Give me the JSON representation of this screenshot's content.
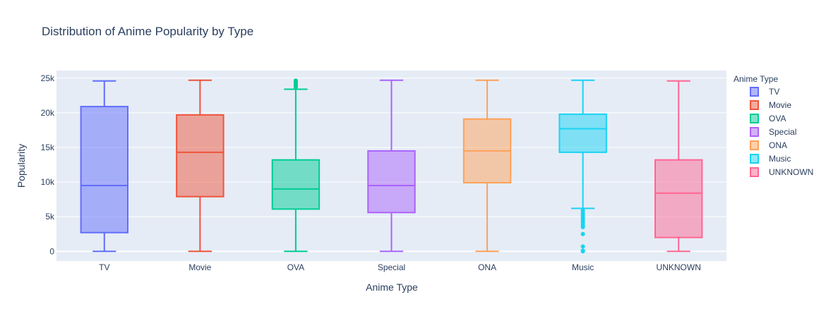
{
  "chart_data": {
    "type": "box",
    "title": "Distribution of Anime Popularity by Type",
    "xlabel": "Anime Type",
    "ylabel": "Popularity",
    "ylim": [
      -1400,
      26100
    ],
    "yticks": [
      0,
      5000,
      10000,
      15000,
      20000,
      25000
    ],
    "ytick_labels": [
      "0",
      "5k",
      "10k",
      "15k",
      "20k",
      "25k"
    ],
    "grid": true,
    "legend_title": "Anime Type",
    "legend_position": "right",
    "plot_background": "#e5ecf6",
    "series": [
      {
        "name": "TV",
        "color": "#636efa",
        "min": 0,
        "q1": 2700,
        "median": 9500,
        "q3": 20900,
        "max": 24600,
        "outliers": []
      },
      {
        "name": "Movie",
        "color": "#ef553b",
        "min": 0,
        "q1": 7900,
        "median": 14300,
        "q3": 19700,
        "max": 24700,
        "outliers": []
      },
      {
        "name": "OVA",
        "color": "#00cc96",
        "min": 0,
        "q1": 6100,
        "median": 9000,
        "q3": 13200,
        "max": 23400,
        "outliers": [
          23700,
          23900,
          24100,
          24300,
          24500,
          24650
        ]
      },
      {
        "name": "Special",
        "color": "#ab63fa",
        "min": 0,
        "q1": 5600,
        "median": 9500,
        "q3": 14500,
        "max": 24700,
        "outliers": []
      },
      {
        "name": "ONA",
        "color": "#ffa15a",
        "min": 0,
        "q1": 9900,
        "median": 14500,
        "q3": 19100,
        "max": 24700,
        "outliers": []
      },
      {
        "name": "Music",
        "color": "#19d3f3",
        "min": 6200,
        "q1": 14300,
        "median": 17700,
        "q3": 19800,
        "max": 24700,
        "outliers": [
          5900,
          5500,
          5200,
          4900,
          4600,
          4300,
          4000,
          3700,
          3500,
          2500,
          700,
          100,
          0
        ]
      },
      {
        "name": "UNKNOWN",
        "color": "#ff6692",
        "min": 0,
        "q1": 2000,
        "median": 8400,
        "q3": 13200,
        "max": 24600,
        "outliers": []
      }
    ]
  }
}
